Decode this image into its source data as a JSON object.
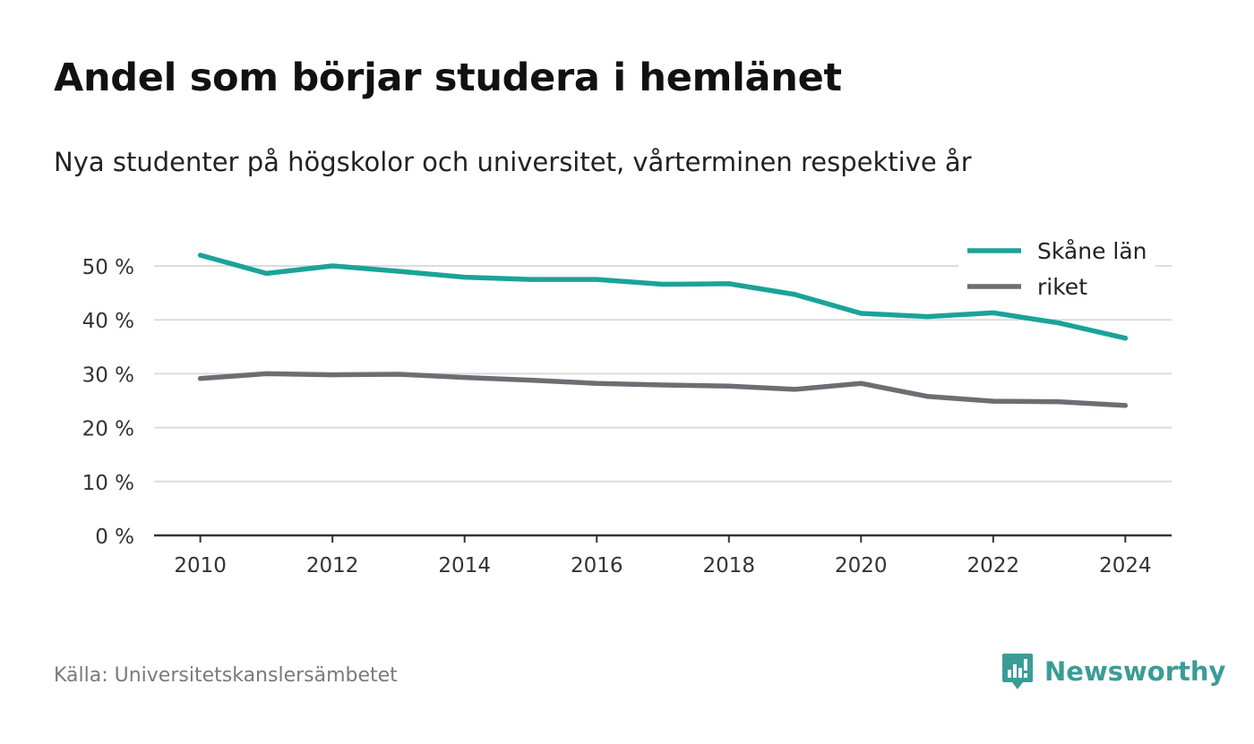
{
  "header": {
    "title": "Andel som börjar studera i hemlänet",
    "subtitle": "Nya studenter på högskolor och universitet, vårterminen respektive år"
  },
  "footer": {
    "source": "Källa: Universitetskanslersämbetet",
    "brand": "Newsworthy",
    "brand_color": "#3b9c97"
  },
  "chart_data": {
    "type": "line",
    "title": "Andel som börjar studera i hemlänet",
    "subtitle": "Nya studenter på högskolor och universitet, vårterminen respektive år",
    "x": [
      2010,
      2011,
      2012,
      2013,
      2014,
      2015,
      2016,
      2017,
      2018,
      2019,
      2020,
      2021,
      2022,
      2023,
      2024
    ],
    "series": [
      {
        "name": "Skåne län",
        "color": "#1aa39a",
        "values": [
          52.0,
          48.6,
          50.0,
          49.0,
          47.9,
          47.5,
          47.5,
          46.6,
          46.7,
          44.7,
          41.2,
          40.6,
          41.3,
          39.4,
          36.6
        ]
      },
      {
        "name": "riket",
        "color": "#6e6d73",
        "values": [
          29.1,
          30.0,
          29.8,
          29.9,
          29.3,
          28.8,
          28.2,
          27.9,
          27.7,
          27.1,
          28.2,
          25.8,
          24.9,
          24.8,
          24.1
        ]
      }
    ],
    "xticks": [
      "2010",
      "2012",
      "2014",
      "2016",
      "2018",
      "2020",
      "2022",
      "2024"
    ],
    "yticks": [
      "0 %",
      "10 %",
      "20 %",
      "30 %",
      "40 %",
      "50 %"
    ],
    "ylim": [
      0,
      52
    ],
    "xlim": [
      2009.3,
      2024.7
    ],
    "grid": true,
    "legend_position": "top-right"
  }
}
